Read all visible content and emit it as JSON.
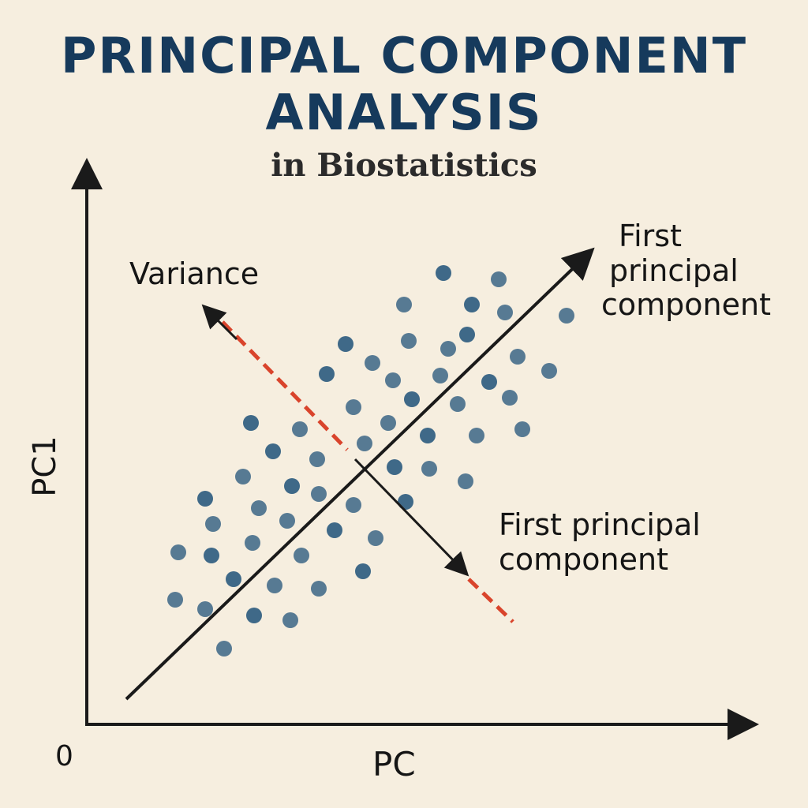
{
  "title": {
    "line1": "PRINCIPAL COMPONENT",
    "line2": "ANALYSIS",
    "subtitle": "in Biostatistics"
  },
  "labels": {
    "variance": "Variance",
    "first_pc_top": [
      "First",
      "principal",
      "component"
    ],
    "first_pc_bottom": [
      "First principal",
      "component"
    ],
    "y_axis": "PC1",
    "x_axis": "PC",
    "origin": "0"
  },
  "colors": {
    "background": "#f6eedf",
    "title": "#163a5c",
    "points": "#2f5d80",
    "axis": "#1a1a1a",
    "variance_dash": "#d9442c"
  }
}
